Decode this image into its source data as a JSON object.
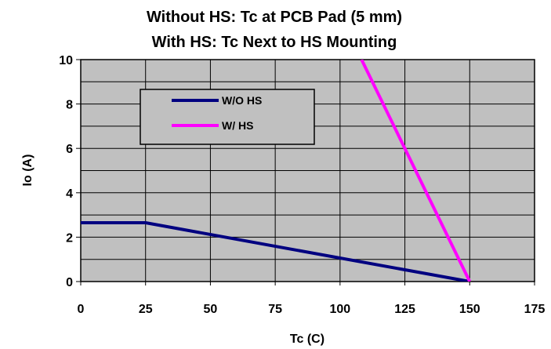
{
  "chart_data": {
    "type": "line",
    "title": [
      "Without HS: Tc at PCB Pad (5 mm)",
      "With HS:  Tc Next to HS Mounting"
    ],
    "xlabel": "Tc (C)",
    "ylabel": "Io (A)",
    "xlim": [
      0,
      175
    ],
    "ylim": [
      0,
      10
    ],
    "x_ticks": [
      0,
      25,
      50,
      75,
      100,
      125,
      150,
      175
    ],
    "x_tick_labels": [
      "0",
      "25",
      "50",
      "75",
      "100",
      "125",
      "150",
      "175"
    ],
    "y_major_ticks": [
      0,
      2,
      4,
      6,
      8,
      10
    ],
    "y_tick_labels": [
      "0",
      "2",
      "4",
      "6",
      "8",
      "10"
    ],
    "y_gridlines": [
      0,
      1,
      2,
      3,
      4,
      5,
      6,
      7,
      8,
      9,
      10
    ],
    "grid": true,
    "plot_background": "#c0c0c0",
    "legend_position": "upper-left inside plot",
    "series": [
      {
        "name": "W/O HS",
        "color": "#000080",
        "points": [
          [
            0,
            2.65
          ],
          [
            25,
            2.65
          ],
          [
            150,
            0
          ]
        ]
      },
      {
        "name": "W/ HS",
        "color": "#ff00ff",
        "points": [
          [
            108.3,
            10
          ],
          [
            150,
            0
          ]
        ]
      }
    ]
  }
}
